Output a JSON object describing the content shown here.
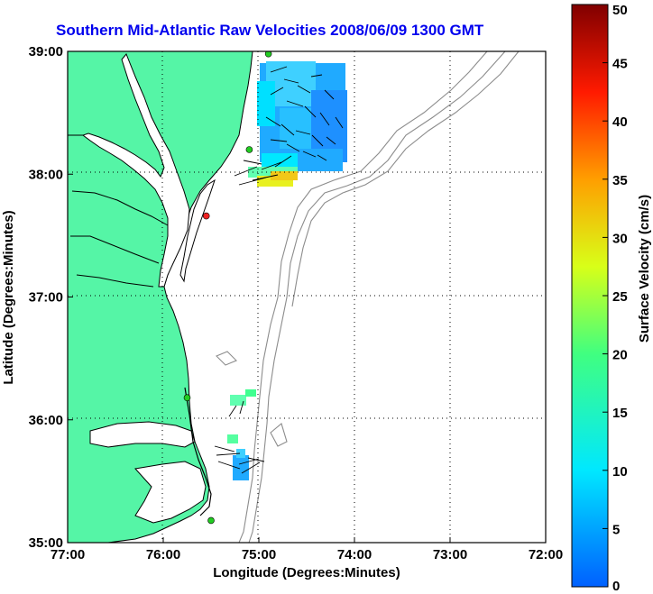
{
  "title": "Southern Mid-Atlantic Raw Velocities 2008/06/09 1300 GMT",
  "x_axis": {
    "label": "Longitude (Degrees:Minutes)",
    "ticks": [
      "77:00",
      "76:00",
      "75:00",
      "74:00",
      "73:00",
      "72:00"
    ]
  },
  "y_axis": {
    "label": "Latitude (Degrees:Minutes)",
    "ticks": [
      "39:00",
      "38:00",
      "37:00",
      "36:00",
      "35:00"
    ]
  },
  "colorbar": {
    "label": "Surface Velocity (cm/s)",
    "ticks": [
      "50",
      "45",
      "40",
      "35",
      "30",
      "25",
      "20",
      "15",
      "10",
      "5",
      "0"
    ],
    "min": 0,
    "max": 50
  },
  "colors": {
    "land": "#55f5a6",
    "coast": "#000000",
    "bathymetry": "#8c8c8c",
    "title": "#0000ee"
  },
  "stations": [
    {
      "lat": 38.98,
      "lon": -74.9,
      "color": "#22cc22"
    },
    {
      "lat": 38.2,
      "lon": -75.1,
      "color": "#22cc22"
    },
    {
      "lat": 37.66,
      "lon": -75.55,
      "color": "#ee2222"
    },
    {
      "lat": 36.18,
      "lon": -75.75,
      "color": "#22cc22"
    },
    {
      "lat": 35.18,
      "lon": -75.5,
      "color": "#22cc22"
    }
  ]
}
